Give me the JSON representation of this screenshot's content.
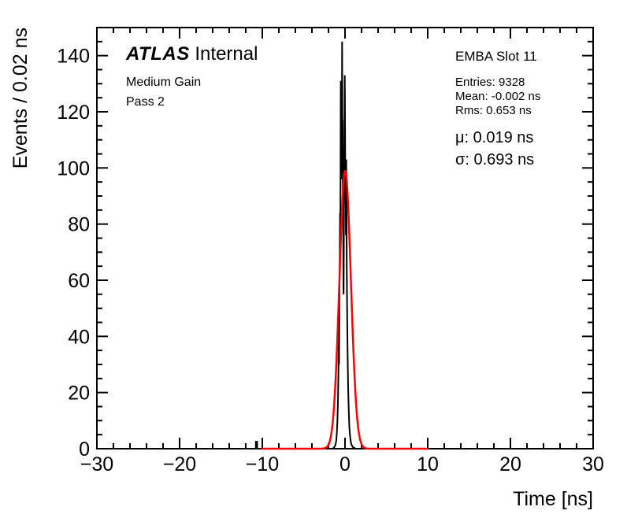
{
  "annotations": {
    "atlas": "ATLAS",
    "atlas_suffix": " Internal",
    "gain": "Medium Gain",
    "pass": "Pass 2",
    "slot": "EMBA Slot 11",
    "entries": "Entries: 9328",
    "mean": "Mean: -0.002 ns",
    "rms": "Rms: 0.653 ns",
    "mu": "μ: 0.019 ns",
    "sigma": "σ: 0.693 ns"
  },
  "chart_data": {
    "type": "histogram",
    "title": "",
    "xlabel": "Time [ns]",
    "ylabel": "Events / 0.02 ns",
    "xlim": [
      -30,
      30
    ],
    "ylim": [
      0,
      150
    ],
    "x_ticks": [
      -30,
      -20,
      -10,
      0,
      10,
      20,
      30
    ],
    "x_tick_labels": [
      "−30",
      "−20",
      "−10",
      "0",
      "10",
      "20",
      "30"
    ],
    "y_ticks": [
      0,
      20,
      40,
      60,
      80,
      100,
      120,
      140
    ],
    "y_tick_labels": [
      "0",
      "20",
      "40",
      "60",
      "80",
      "100",
      "120",
      "140"
    ],
    "x_minor_step": 2,
    "y_minor_step": 5,
    "grid": false,
    "legend_position": "none",
    "bin_width_ns": 0.02,
    "stats": {
      "entries": 9328,
      "mean_ns": -0.002,
      "rms_ns": 0.653,
      "fit_mu_ns": 0.019,
      "fit_sigma_ns": 0.693
    },
    "series": [
      {
        "name": "data-histogram",
        "type": "step",
        "color": "#000000",
        "line_width": 2,
        "points": [
          [
            -10.78,
            0
          ],
          [
            -10.78,
            2.5
          ],
          [
            -10.62,
            2.5
          ],
          [
            -10.62,
            0
          ],
          [
            -1.5,
            0
          ],
          [
            -1.3,
            0.5
          ],
          [
            -1.15,
            1.5
          ],
          [
            -1.05,
            3
          ],
          [
            -0.98,
            6
          ],
          [
            -0.92,
            10
          ],
          [
            -0.86,
            16
          ],
          [
            -0.8,
            26
          ],
          [
            -0.76,
            38
          ],
          [
            -0.72,
            30
          ],
          [
            -0.68,
            52
          ],
          [
            -0.64,
            66
          ],
          [
            -0.6,
            84
          ],
          [
            -0.57,
            72
          ],
          [
            -0.54,
            98
          ],
          [
            -0.51,
            131
          ],
          [
            -0.49,
            112
          ],
          [
            -0.47,
            96
          ],
          [
            -0.44,
            118
          ],
          [
            -0.41,
            131
          ],
          [
            -0.39,
            104
          ],
          [
            -0.37,
            122
          ],
          [
            -0.35,
            145
          ],
          [
            -0.33,
            128
          ],
          [
            -0.31,
            101
          ],
          [
            -0.29,
            117
          ],
          [
            -0.27,
            94
          ],
          [
            -0.25,
            80
          ],
          [
            -0.23,
            88
          ],
          [
            -0.21,
            70
          ],
          [
            -0.19,
            57
          ],
          [
            -0.17,
            55
          ],
          [
            -0.15,
            68
          ],
          [
            -0.13,
            80
          ],
          [
            -0.11,
            92
          ],
          [
            -0.09,
            103
          ],
          [
            -0.07,
            114
          ],
          [
            -0.05,
            121
          ],
          [
            -0.03,
            133
          ],
          [
            -0.01,
            126
          ],
          [
            0.01,
            112
          ],
          [
            0.03,
            100
          ],
          [
            0.05,
            92
          ],
          [
            0.07,
            101
          ],
          [
            0.09,
            88
          ],
          [
            0.11,
            76
          ],
          [
            0.13,
            90
          ],
          [
            0.15,
            103
          ],
          [
            0.17,
            92
          ],
          [
            0.19,
            78
          ],
          [
            0.21,
            66
          ],
          [
            0.24,
            55
          ],
          [
            0.27,
            45
          ],
          [
            0.3,
            37
          ],
          [
            0.34,
            29
          ],
          [
            0.38,
            22
          ],
          [
            0.42,
            17
          ],
          [
            0.47,
            12
          ],
          [
            0.52,
            8
          ],
          [
            0.58,
            5.5
          ],
          [
            0.65,
            3.5
          ],
          [
            0.73,
            2
          ],
          [
            0.82,
            1.2
          ],
          [
            0.95,
            0.6
          ],
          [
            1.1,
            0.3
          ],
          [
            1.3,
            0
          ]
        ]
      },
      {
        "name": "gaussian-fit",
        "type": "gaussian",
        "color": "#ff0000",
        "line_width": 2.5,
        "amplitude": 99,
        "mean": 0.019,
        "sigma": 0.693,
        "range": [
          -10,
          10
        ]
      }
    ]
  }
}
